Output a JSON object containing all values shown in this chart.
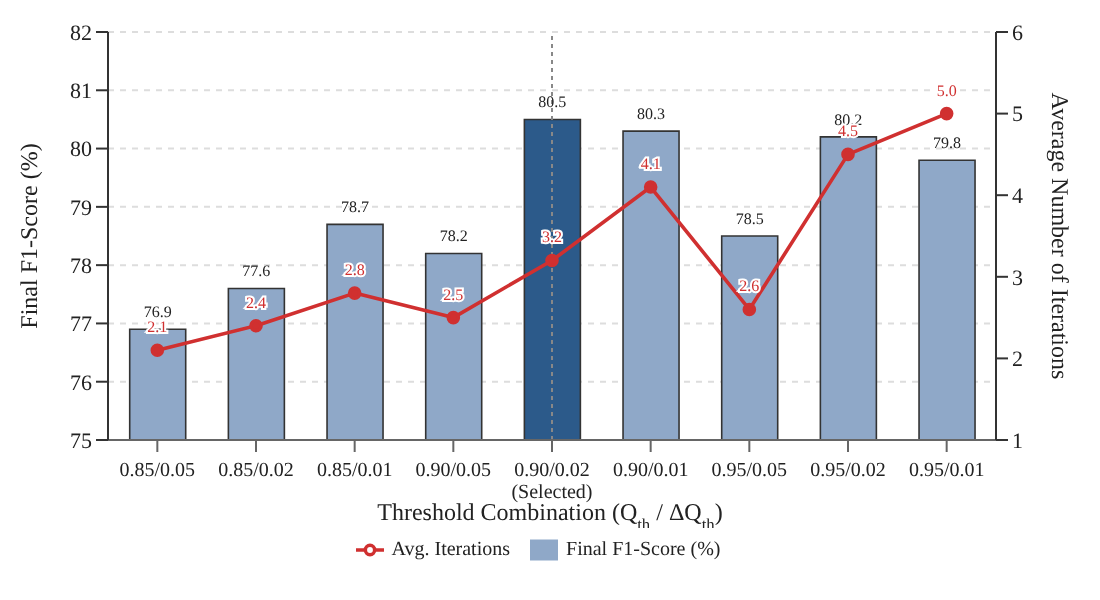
{
  "chart_data": {
    "type": "bar",
    "xlabel": "Threshold Combination (Q$_{th}$ / ΔQ$_{th}$)",
    "ylabel": "Final F1-Score (%)",
    "y2label": "Average Number of Iterations",
    "categories": [
      "0.85/0.05",
      "0.85/0.02",
      "0.85/0.01",
      "0.90/0.05",
      "0.90/0.02\n(Selected)",
      "0.90/0.01",
      "0.95/0.05",
      "0.95/0.02",
      "0.95/0.01"
    ],
    "series": [
      {
        "name": "Final F1-Score (%)",
        "color": "#8fa8c8",
        "colors": [
          "#8fa8c8",
          "#8fa8c8",
          "#8fa8c8",
          "#8fa8c8",
          "#2c5a8a",
          "#8fa8c8",
          "#8fa8c8",
          "#8fa8c8",
          "#8fa8c8"
        ],
        "values": [
          76.9,
          77.6,
          78.7,
          78.2,
          80.5,
          80.3,
          78.5,
          80.2,
          79.8
        ]
      },
      {
        "name": "Avg. Iterations",
        "type": "line",
        "axis": "y2",
        "color": "#d03030",
        "marker": "circle",
        "values": [
          2.1,
          2.4,
          2.8,
          2.5,
          3.2,
          4.1,
          2.6,
          4.5,
          5.0
        ],
        "value_labels": [
          "2.1",
          "2.4",
          "2.8",
          "2.5",
          "3.2",
          "4.1",
          "2.6",
          "4.5",
          "5.0"
        ]
      }
    ],
    "ylim": [
      75,
      82
    ],
    "yticks": [
      75,
      76,
      77,
      78,
      79,
      80,
      81,
      82
    ],
    "y2lim": [
      1,
      6
    ],
    "y2ticks": [
      1,
      2,
      3,
      4,
      5,
      6
    ],
    "ref_lines": [
      {
        "axis": "x",
        "value": "0.90/0.02\n(Selected)",
        "color": "#888888",
        "line_style": "dotted"
      }
    ],
    "data_labels": true,
    "grid": "y",
    "legend": "bottom"
  }
}
